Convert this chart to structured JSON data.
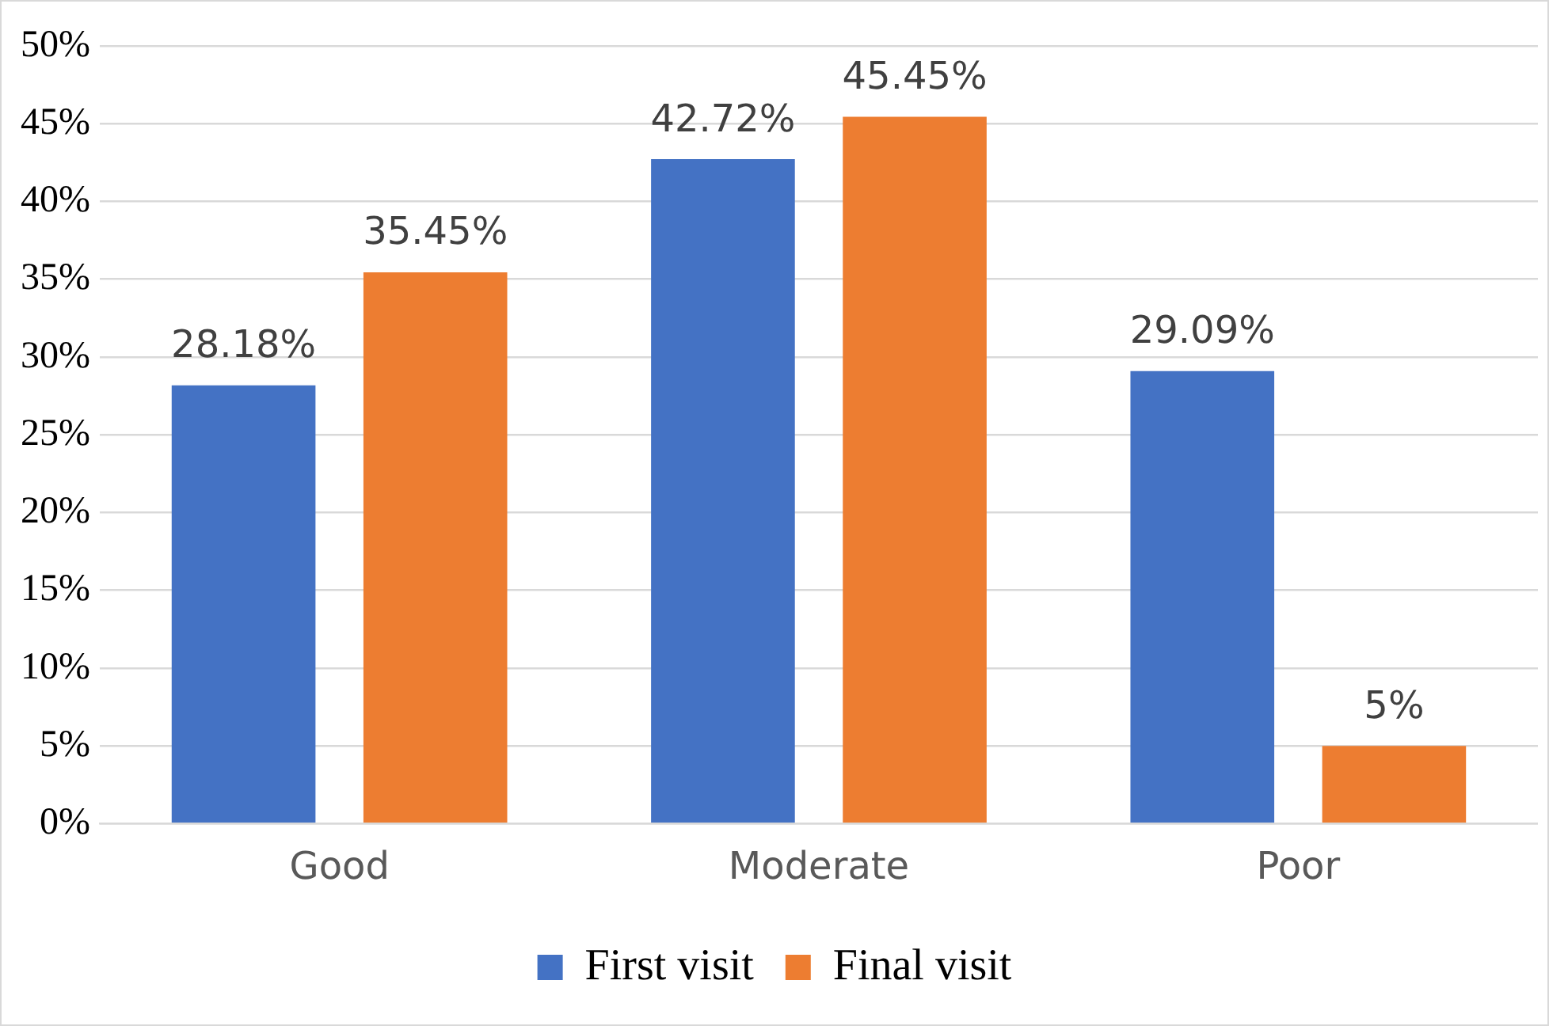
{
  "chart_data": {
    "type": "bar",
    "categories": [
      "Good",
      "Moderate",
      "Poor"
    ],
    "series": [
      {
        "name": "First visit",
        "color": "#4472c4",
        "values": [
          28.18,
          42.72,
          29.09
        ],
        "value_labels": [
          "28.18%",
          "42.72%",
          "29.09%"
        ]
      },
      {
        "name": "Final visit",
        "color": "#ed7d31",
        "values": [
          35.45,
          45.45,
          5
        ],
        "value_labels": [
          "35.45%",
          "45.45%",
          "5%"
        ]
      }
    ],
    "ylim": [
      0,
      50
    ],
    "yticks": [
      {
        "value": 0,
        "label": "0%"
      },
      {
        "value": 5,
        "label": "5%"
      },
      {
        "value": 10,
        "label": "10%"
      },
      {
        "value": 15,
        "label": "15%"
      },
      {
        "value": 20,
        "label": "20%"
      },
      {
        "value": 25,
        "label": "25%"
      },
      {
        "value": 30,
        "label": "30%"
      },
      {
        "value": 35,
        "label": "35%"
      },
      {
        "value": 40,
        "label": "40%"
      },
      {
        "value": 45,
        "label": "45%"
      },
      {
        "value": 50,
        "label": "50%"
      }
    ],
    "grid": "y",
    "legend": "bottom"
  }
}
